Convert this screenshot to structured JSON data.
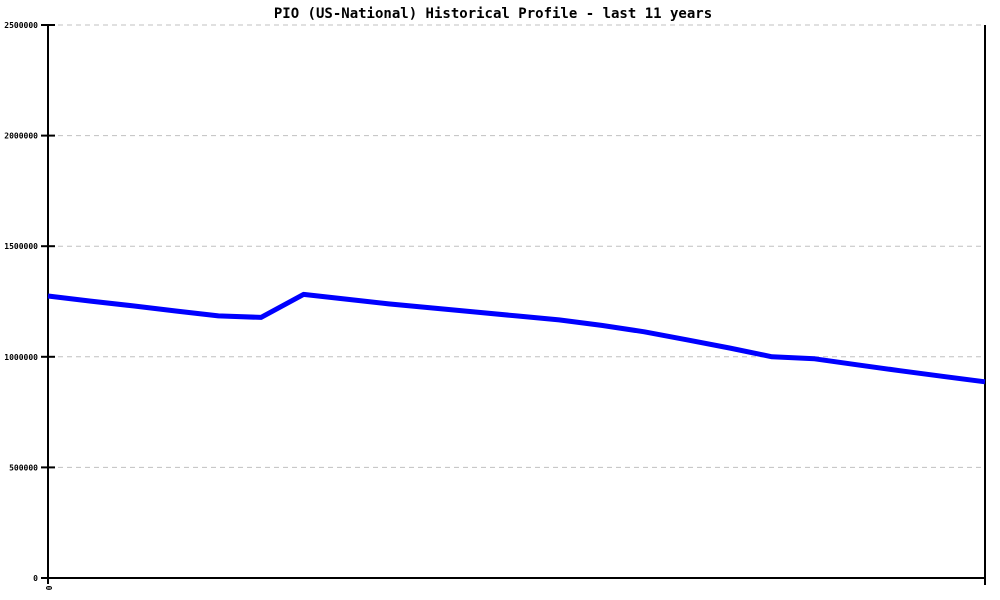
{
  "chart_data": {
    "type": "line",
    "title": "PIO (US-National) Historical Profile - last 11 years",
    "xlabel": "",
    "ylabel": "",
    "xlim": [
      0,
      11
    ],
    "ylim": [
      0,
      2500000
    ],
    "yticks": [
      0,
      500000,
      1000000,
      1500000,
      2000000,
      2500000
    ],
    "xticks": [
      {
        "x": 0,
        "label": "0"
      }
    ],
    "xtick_label_rotation_deg": -90,
    "grid": "horizontal-dashed",
    "legend": "none",
    "x": [
      0,
      0.5,
      1,
      1.5,
      2,
      2.5,
      3,
      3.5,
      4,
      4.5,
      5,
      5.5,
      6,
      6.5,
      7,
      7.5,
      8,
      8.5,
      9,
      9.5,
      10,
      10.5,
      11
    ],
    "series": [
      {
        "name": "PIO",
        "color": "#0000ff",
        "values": [
          1275000,
          1252000,
          1230000,
          1207000,
          1185000,
          1178000,
          1282000,
          1261000,
          1239000,
          1221000,
          1203000,
          1185000,
          1167000,
          1142000,
          1113000,
          1077000,
          1040000,
          1000000,
          991000,
          964000,
          937000,
          912000,
          887000
        ]
      }
    ],
    "colors": {
      "background": "#ffffff",
      "axis": "#000000",
      "grid": "#c0c0c0",
      "title_text": "#000000",
      "tick_text": "#000000",
      "line": "#0000ff"
    }
  }
}
